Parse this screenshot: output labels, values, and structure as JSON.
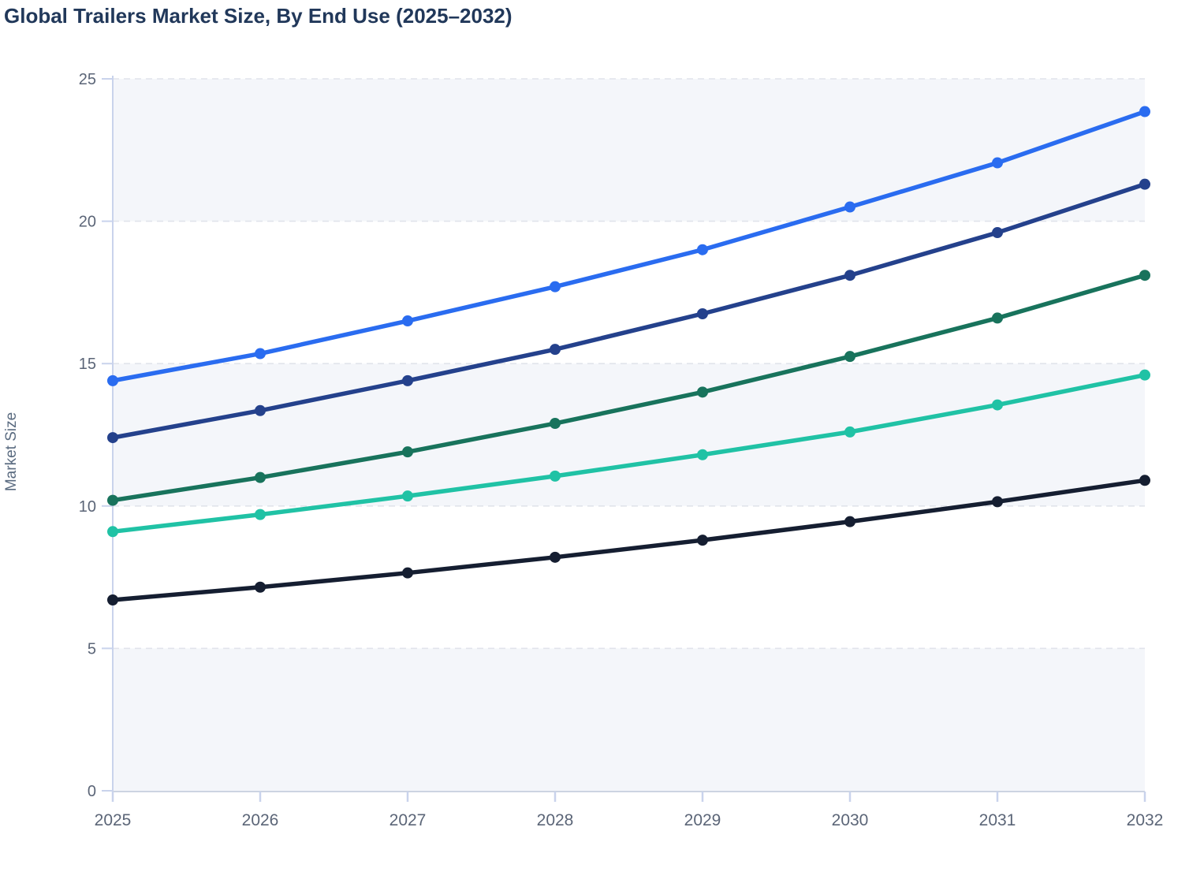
{
  "title": "Global Trailers Market Size, By End Use (2025–2032)",
  "chart_data": {
    "type": "line",
    "title": "Global Trailers Market Size, By End Use (2025–2032)",
    "xlabel": "",
    "ylabel": "Market Size",
    "x": [
      "2025",
      "2026",
      "2027",
      "2028",
      "2029",
      "2030",
      "2031",
      "2032"
    ],
    "ylim": [
      0,
      25
    ],
    "yticks": [
      0,
      5,
      10,
      15,
      20,
      25
    ],
    "grid": "horizontal-dashed",
    "legend": "none",
    "alternating_bands": [
      [
        20,
        25
      ],
      [
        10,
        15
      ],
      [
        0,
        5
      ]
    ],
    "series": [
      {
        "name": "blue",
        "color": "#2a6cf0",
        "values": [
          14.4,
          15.35,
          16.5,
          17.7,
          19.0,
          20.5,
          22.05,
          23.85
        ]
      },
      {
        "name": "navy",
        "color": "#24418c",
        "values": [
          12.4,
          13.35,
          14.4,
          15.5,
          16.75,
          18.1,
          19.6,
          21.3
        ]
      },
      {
        "name": "dark-green",
        "color": "#18735c",
        "values": [
          10.2,
          11.0,
          11.9,
          12.9,
          14.0,
          15.25,
          16.6,
          18.1
        ]
      },
      {
        "name": "teal",
        "color": "#20c2a5",
        "values": [
          9.1,
          9.7,
          10.35,
          11.05,
          11.8,
          12.6,
          13.55,
          14.6
        ]
      },
      {
        "name": "black",
        "color": "#151e31",
        "values": [
          6.7,
          7.15,
          7.65,
          8.2,
          8.8,
          9.45,
          10.15,
          10.9
        ]
      }
    ],
    "styles": {
      "title_color": "#21385a",
      "band_fill": "#f4f6fa",
      "gridline": "#e1e4eb",
      "axis_light": "#c9d3ec",
      "axis_bottom": "#ccd4e2",
      "tick_label": "#5b6577",
      "axis_title": "#5a6b80"
    }
  }
}
